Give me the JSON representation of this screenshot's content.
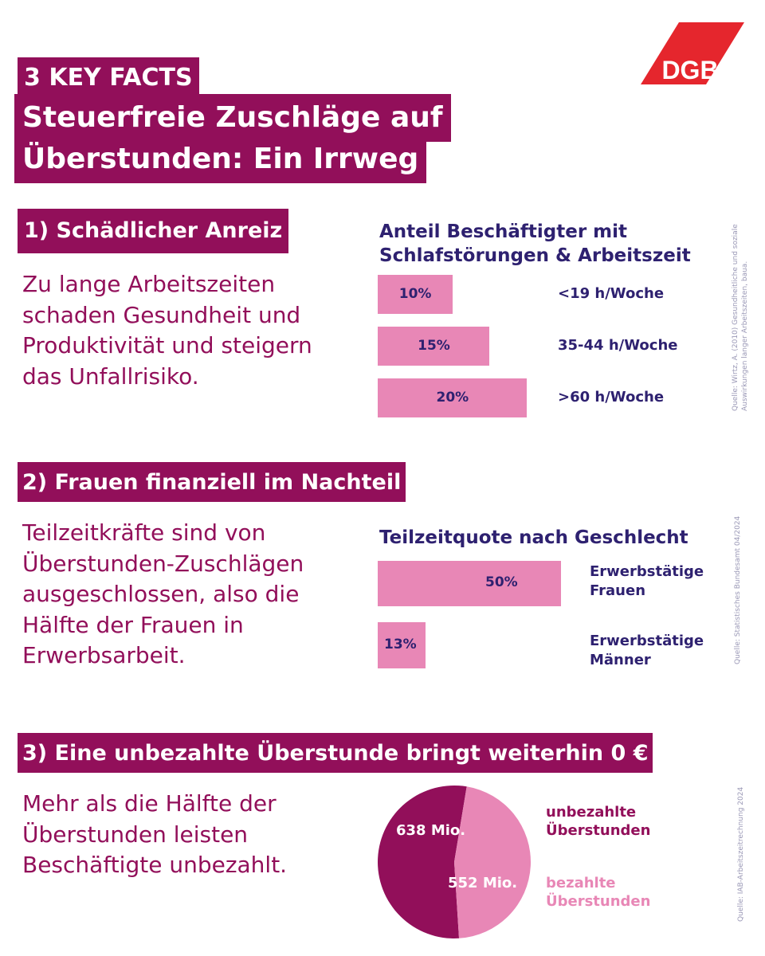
{
  "header": {
    "label": "3 KEY FACTS",
    "title_line1": "Steuerfreie Zuschläge auf",
    "title_line2": "Überstunden: Ein Irrweg",
    "logo_text": "DGB"
  },
  "colors": {
    "magenta": "#920f5a",
    "pink": "#e887b6",
    "navy": "#2e2170",
    "logo_red": "#e5262d"
  },
  "section1": {
    "heading": "1) Schädlicher Anreiz",
    "text_lines": [
      "Zu lange Arbeitszeiten",
      "schaden Gesundheit und",
      "Produktivität und steigern",
      "das Unfallrisiko."
    ],
    "source_lines": [
      "Quelle: Wirtz, A. (2010) Gesundheitliche und soziale",
      "Auswirkungen langer Arbeitszeiten, baua."
    ]
  },
  "section2": {
    "heading": "2) Frauen finanziell im Nachteil",
    "text_lines": [
      "Teilzeitkräfte sind von",
      "Überstunden-Zuschlägen",
      "ausgeschlossen, also die",
      "Hälfte der Frauen in",
      "Erwerbsarbeit."
    ],
    "source": "Quelle: Statistisches Bundesamt 04/2024"
  },
  "section3": {
    "heading": "3) Eine unbezahlte Überstunde bringt weiterhin 0 €",
    "text_lines": [
      "Mehr als die Hälfte der",
      "Überstunden leisten",
      "Beschäftigte unbezahlt."
    ],
    "source": "Quelle: IAB-Arbeitszeitrechnung 2024"
  },
  "chart_data": [
    {
      "type": "bar",
      "orientation": "horizontal",
      "title_lines": [
        "Anteil Beschäftigter mit",
        "Schlafstörungen & Arbeitszeit"
      ],
      "categories": [
        "<19 h/Woche",
        "35-44 h/Woche",
        ">60 h/Woche"
      ],
      "values": [
        10,
        15,
        20
      ],
      "value_labels": [
        "10%",
        "15%",
        "20%"
      ],
      "unit": "%",
      "xlim": [
        0,
        20
      ],
      "grid": false,
      "color": "#e887b6"
    },
    {
      "type": "bar",
      "orientation": "horizontal",
      "title": "Teilzeitquote nach Geschlecht",
      "categories": [
        [
          "Erwerbstätige",
          "Frauen"
        ],
        [
          "Erwerbstätige",
          "Männer"
        ]
      ],
      "values": [
        50,
        13
      ],
      "value_labels": [
        "50%",
        "13%"
      ],
      "unit": "%",
      "xlim": [
        0,
        50
      ],
      "grid": false,
      "color": "#e887b6"
    },
    {
      "type": "pie",
      "categories": [
        [
          "unbezahlte",
          "Überstunden"
        ],
        [
          "bezahlte",
          "Überstunden"
        ]
      ],
      "values": [
        638,
        552
      ],
      "value_labels": [
        "638 Mio.",
        "552 Mio."
      ],
      "colors": [
        "#920f5a",
        "#e887b6"
      ]
    }
  ]
}
